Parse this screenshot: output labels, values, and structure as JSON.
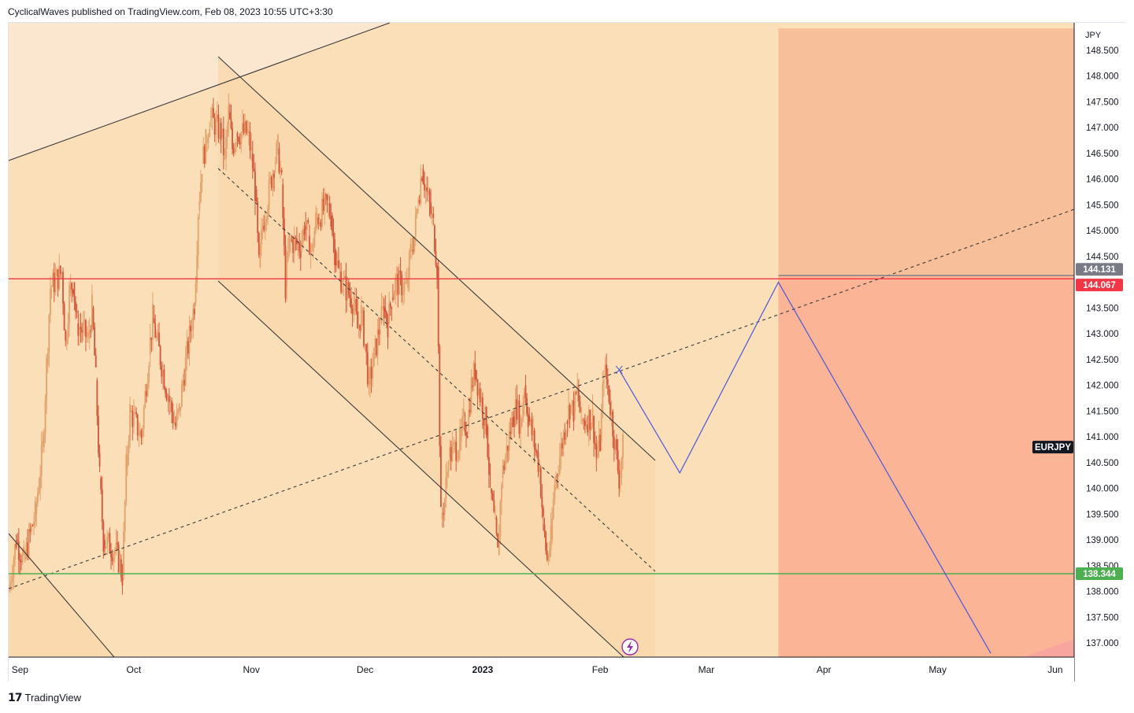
{
  "header": {
    "published_by": "CyclicalWaves published on TradingView.com, Feb 08, 2023 10:55 UTC+3:30"
  },
  "footer": {
    "brand": "TradingView",
    "logo_icon": "tradingview-logo-icon"
  },
  "chart_data": {
    "type": "candlestick",
    "symbol": "EURJPY",
    "currency_label": "JPY",
    "x_labels": [
      {
        "label": "Sep",
        "date": "2022-09-01"
      },
      {
        "label": "Oct",
        "date": "2022-10-01"
      },
      {
        "label": "Nov",
        "date": "2022-11-01"
      },
      {
        "label": "Dec",
        "date": "2022-12-01"
      },
      {
        "label": "2023",
        "date": "2023-01-01",
        "bold": true
      },
      {
        "label": "Feb",
        "date": "2023-02-01"
      },
      {
        "label": "Mar",
        "date": "2023-03-01"
      },
      {
        "label": "Apr",
        "date": "2023-04-01"
      },
      {
        "label": "May",
        "date": "2023-05-01"
      },
      {
        "label": "Jun",
        "date": "2023-06-01"
      }
    ],
    "y_ticks": [
      "137.000",
      "137.500",
      "138.000",
      "138.500",
      "139.000",
      "139.500",
      "140.000",
      "140.500",
      "141.000",
      "141.500",
      "142.000",
      "142.500",
      "143.000",
      "143.500",
      "144.500",
      "145.000",
      "145.500",
      "146.000",
      "146.500",
      "147.000",
      "147.500",
      "148.000",
      "148.500"
    ],
    "ylim": [
      136.8,
      149.0
    ],
    "xlim": [
      "2022-08-29",
      "2023-06-06"
    ],
    "price_path": [
      [
        "2022-08-29",
        138.0
      ],
      [
        "2022-08-31",
        139.0
      ],
      [
        "2022-09-02",
        138.6
      ],
      [
        "2022-09-05",
        139.5
      ],
      [
        "2022-09-07",
        140.8
      ],
      [
        "2022-09-08",
        142.4
      ],
      [
        "2022-09-09",
        143.9
      ],
      [
        "2022-09-12",
        144.2
      ],
      [
        "2022-09-13",
        142.8
      ],
      [
        "2022-09-14",
        143.8
      ],
      [
        "2022-09-15",
        144.0
      ],
      [
        "2022-09-16",
        143.2
      ],
      [
        "2022-09-19",
        142.9
      ],
      [
        "2022-09-20",
        143.5
      ],
      [
        "2022-09-21",
        142.1
      ],
      [
        "2022-09-22",
        140.2
      ],
      [
        "2022-09-23",
        139.0
      ],
      [
        "2022-09-26",
        138.8
      ],
      [
        "2022-09-27",
        138.6
      ],
      [
        "2022-09-28",
        138.3
      ],
      [
        "2022-09-29",
        140.4
      ],
      [
        "2022-09-30",
        141.5
      ],
      [
        "2022-10-03",
        141.0
      ],
      [
        "2022-10-05",
        142.6
      ],
      [
        "2022-10-06",
        143.3
      ],
      [
        "2022-10-07",
        142.9
      ],
      [
        "2022-10-10",
        141.8
      ],
      [
        "2022-10-12",
        141.2
      ],
      [
        "2022-10-13",
        141.5
      ],
      [
        "2022-10-14",
        142.1
      ],
      [
        "2022-10-17",
        143.6
      ],
      [
        "2022-10-18",
        145.4
      ],
      [
        "2022-10-19",
        146.3
      ],
      [
        "2022-10-20",
        146.7
      ],
      [
        "2022-10-21",
        147.2
      ],
      [
        "2022-10-24",
        146.9
      ],
      [
        "2022-10-25",
        146.4
      ],
      [
        "2022-10-26",
        147.3
      ],
      [
        "2022-10-27",
        146.6
      ],
      [
        "2022-10-28",
        146.9
      ],
      [
        "2022-10-31",
        146.9
      ],
      [
        "2022-11-01",
        146.5
      ],
      [
        "2022-11-02",
        145.8
      ],
      [
        "2022-11-03",
        144.3
      ],
      [
        "2022-11-04",
        145.1
      ],
      [
        "2022-11-07",
        146.3
      ],
      [
        "2022-11-08",
        146.6
      ],
      [
        "2022-11-09",
        145.9
      ],
      [
        "2022-11-10",
        143.9
      ],
      [
        "2022-11-11",
        144.8
      ],
      [
        "2022-11-14",
        144.7
      ],
      [
        "2022-11-15",
        145.1
      ],
      [
        "2022-11-16",
        144.9
      ],
      [
        "2022-11-17",
        144.6
      ],
      [
        "2022-11-18",
        145.2
      ],
      [
        "2022-11-21",
        145.5
      ],
      [
        "2022-11-22",
        145.3
      ],
      [
        "2022-11-23",
        144.6
      ],
      [
        "2022-11-24",
        144.2
      ],
      [
        "2022-11-25",
        144.0
      ],
      [
        "2022-11-28",
        143.6
      ],
      [
        "2022-11-29",
        143.1
      ],
      [
        "2022-11-30",
        143.4
      ],
      [
        "2022-12-01",
        142.8
      ],
      [
        "2022-12-02",
        142.0
      ],
      [
        "2022-12-05",
        143.2
      ],
      [
        "2022-12-06",
        143.5
      ],
      [
        "2022-12-07",
        143.2
      ],
      [
        "2022-12-08",
        143.7
      ],
      [
        "2022-12-09",
        144.0
      ],
      [
        "2022-12-12",
        143.9
      ],
      [
        "2022-12-13",
        144.6
      ],
      [
        "2022-12-14",
        144.9
      ],
      [
        "2022-12-15",
        145.6
      ],
      [
        "2022-12-16",
        146.2
      ],
      [
        "2022-12-19",
        145.1
      ],
      [
        "2022-12-20",
        144.3
      ],
      [
        "2022-12-21",
        139.4
      ],
      [
        "2022-12-22",
        139.8
      ],
      [
        "2022-12-23",
        140.6
      ],
      [
        "2022-12-26",
        140.9
      ],
      [
        "2022-12-27",
        141.3
      ],
      [
        "2022-12-28",
        141.2
      ],
      [
        "2022-12-29",
        142.0
      ],
      [
        "2022-12-30",
        142.3
      ],
      [
        "2023-01-02",
        141.2
      ],
      [
        "2023-01-03",
        140.0
      ],
      [
        "2023-01-04",
        139.4
      ],
      [
        "2023-01-05",
        138.7
      ],
      [
        "2023-01-06",
        140.2
      ],
      [
        "2023-01-09",
        141.4
      ],
      [
        "2023-01-10",
        141.6
      ],
      [
        "2023-01-11",
        141.2
      ],
      [
        "2023-01-12",
        142.0
      ],
      [
        "2023-01-13",
        141.4
      ],
      [
        "2023-01-16",
        140.4
      ],
      [
        "2023-01-17",
        139.3
      ],
      [
        "2023-01-18",
        138.6
      ],
      [
        "2023-01-19",
        139.0
      ],
      [
        "2023-01-20",
        140.1
      ],
      [
        "2023-01-23",
        141.3
      ],
      [
        "2023-01-24",
        141.6
      ],
      [
        "2023-01-25",
        141.5
      ],
      [
        "2023-01-26",
        141.9
      ],
      [
        "2023-01-27",
        141.3
      ],
      [
        "2023-01-30",
        141.4
      ],
      [
        "2023-01-31",
        140.6
      ],
      [
        "2023-02-01",
        140.9
      ],
      [
        "2023-02-02",
        142.3
      ],
      [
        "2023-02-03",
        142.0
      ],
      [
        "2023-02-06",
        140.2
      ],
      [
        "2023-02-07",
        140.8
      ]
    ],
    "horizontal_levels": [
      {
        "price": 144.067,
        "label": "144.067",
        "color": "#f23645",
        "right_end": "2023-06-06"
      },
      {
        "price": 144.131,
        "label": "144.131",
        "color": "#787b86",
        "from": "2023-03-20"
      },
      {
        "price": 138.344,
        "label": "138.344",
        "color": "#4caf50"
      }
    ],
    "symbol_price": 140.8,
    "colors": {
      "background": "#fbdfb8",
      "candle_up": "#e3a26b",
      "candle_down": "#d3563a",
      "forecast_line": "#4a55e0",
      "zone_upper": "#f8bf9b",
      "zone_lower": "#fbb495",
      "channel_line": "#3a3a3a"
    },
    "forecast_path": [
      [
        "2023-02-06",
        142.3
      ],
      [
        "2023-02-22",
        140.3
      ],
      [
        "2023-03-20",
        144.0
      ],
      [
        "2023-05-15",
        136.8
      ]
    ]
  }
}
